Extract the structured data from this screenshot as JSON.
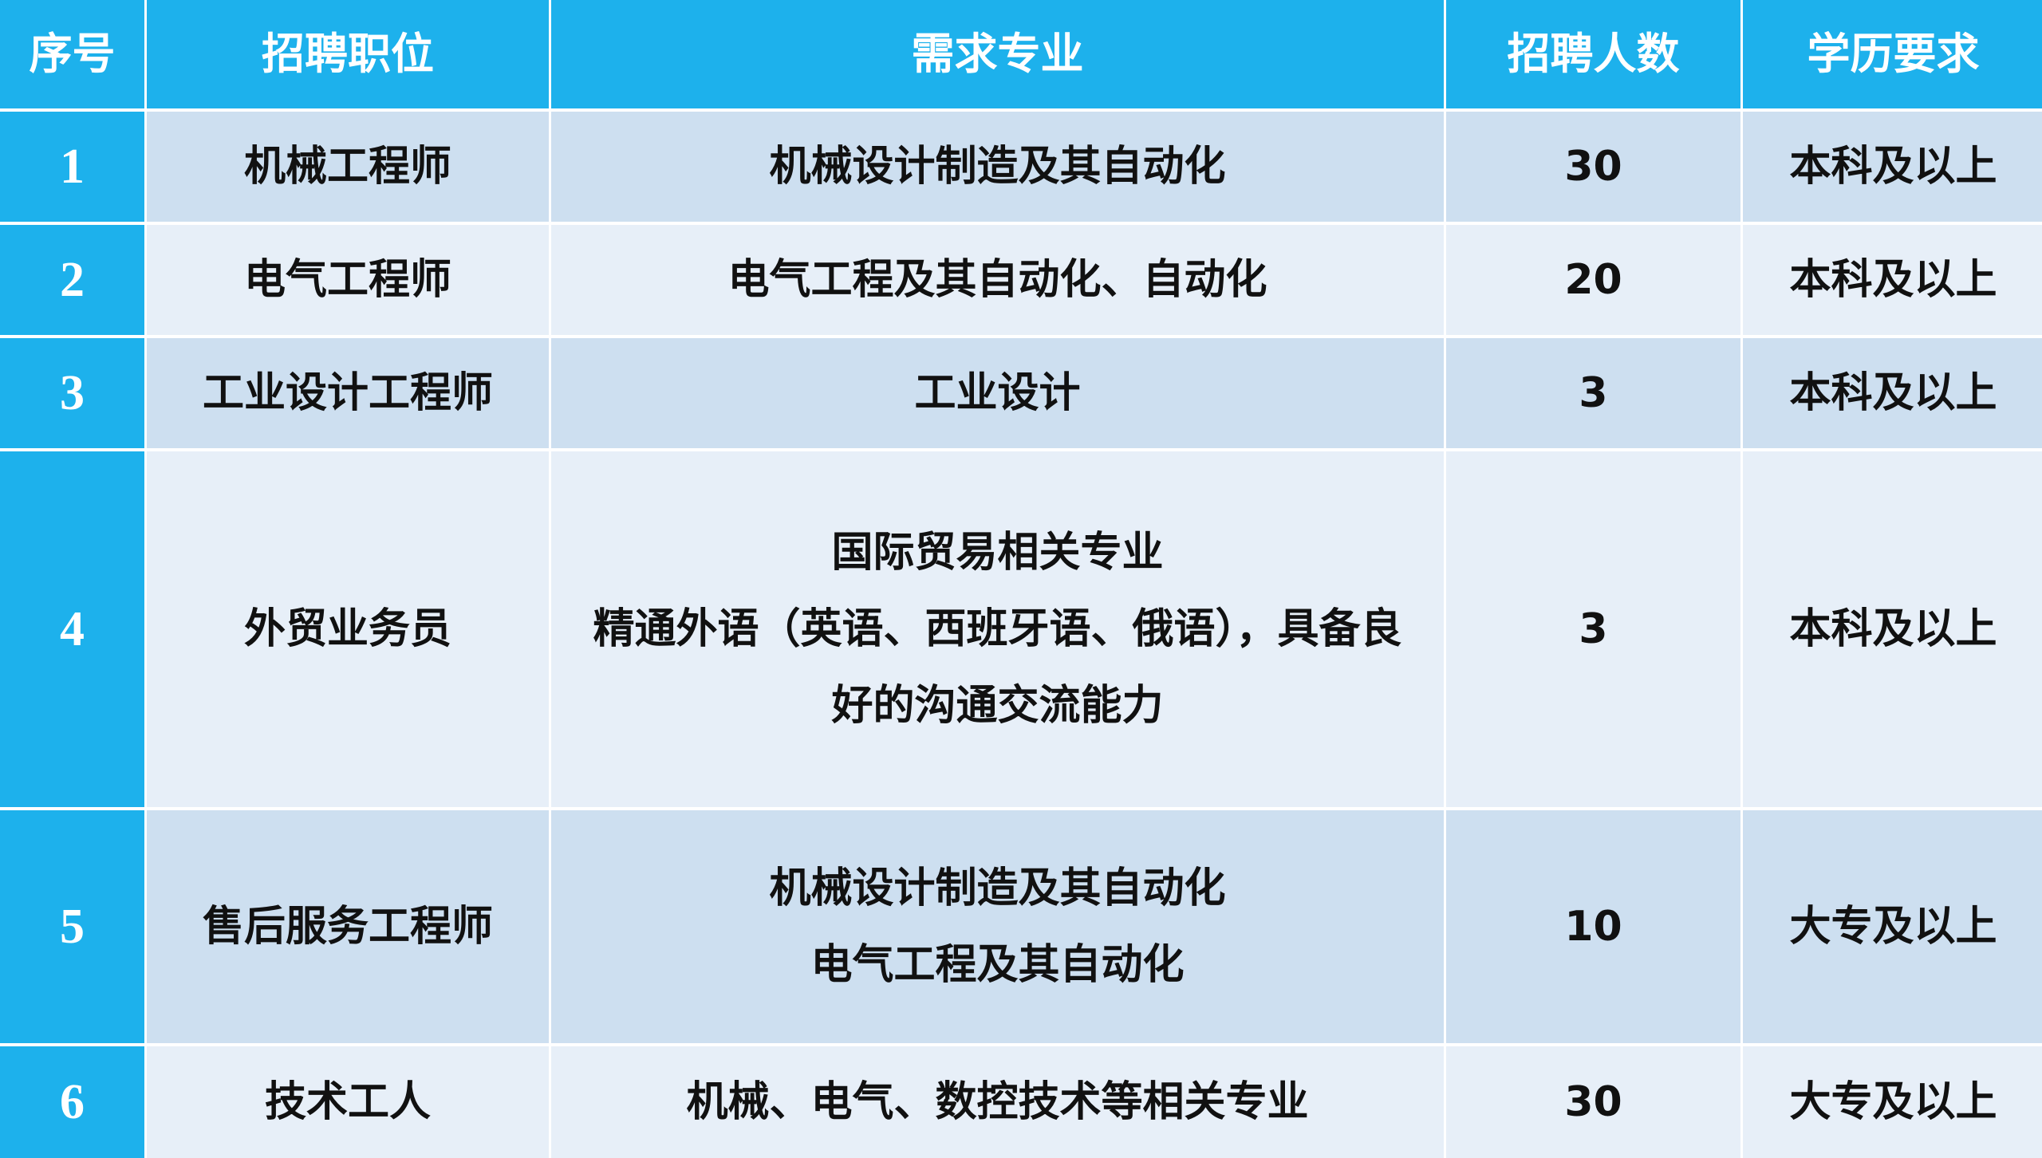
{
  "colors": {
    "header": "#1db1ec",
    "row_dark": "#cddff0",
    "row_light": "#e7eff8"
  },
  "headers": [
    "序号",
    "招聘职位",
    "需求专业",
    "招聘人数",
    "学历要求"
  ],
  "rows": [
    {
      "no": "1",
      "position": "机械工程师",
      "major": [
        "机械设计制造及其自动化"
      ],
      "count": "30",
      "education": "本科及以上"
    },
    {
      "no": "2",
      "position": "电气工程师",
      "major": [
        "电气工程及其自动化、自动化"
      ],
      "count": "20",
      "education": "本科及以上"
    },
    {
      "no": "3",
      "position": "工业设计工程师",
      "major": [
        "工业设计"
      ],
      "count": "3",
      "education": "本科及以上"
    },
    {
      "no": "4",
      "position": "外贸业务员",
      "major": [
        "国际贸易相关专业",
        "精通外语（英语、西班牙语、俄语），具备良",
        "好的沟通交流能力"
      ],
      "count": "3",
      "education": "本科及以上"
    },
    {
      "no": "5",
      "position": "售后服务工程师",
      "major": [
        "机械设计制造及其自动化",
        "电气工程及其自动化"
      ],
      "count": "10",
      "education": "大专及以上"
    },
    {
      "no": "6",
      "position": "技术工人",
      "major": [
        "机械、电气、数控技术等相关专业"
      ],
      "count": "30",
      "education": "大专及以上"
    }
  ]
}
